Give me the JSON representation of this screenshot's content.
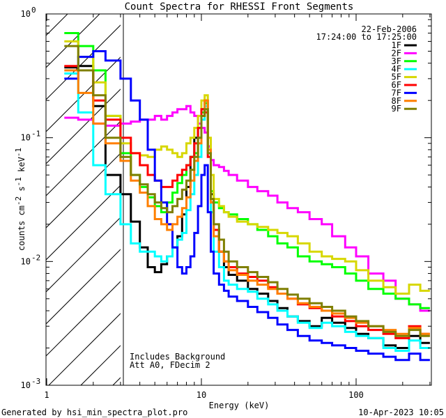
{
  "chart_data": {
    "type": "line",
    "title": "Count Spectra for RHESSI Front Segments",
    "xlabel": "Energy (keV)",
    "ylabel": "counts cm-2 s-1 keV-1",
    "ylabel_parts": [
      "counts cm",
      "-2",
      " s",
      "-1",
      " keV",
      "-1"
    ],
    "x_scale": "log",
    "y_scale": "log",
    "xlim": [
      1.2,
      310
    ],
    "ylim": [
      0.001,
      1.0
    ],
    "x_ticks": [
      {
        "value": 1,
        "label": "1"
      },
      {
        "value": 10,
        "label": "10"
      },
      {
        "value": 100,
        "label": "100"
      }
    ],
    "y_ticks": [
      {
        "value": 1,
        "base": "10",
        "exp": "0"
      },
      {
        "value": 0.1,
        "base": "10",
        "exp": "-1"
      },
      {
        "value": 0.01,
        "base": "10",
        "exp": "-2"
      },
      {
        "value": 0.001,
        "base": "10",
        "exp": "-3"
      }
    ],
    "hatch_region_max_keV": 3,
    "legend": {
      "placement": "top-right",
      "date": "22-Feb-2006",
      "time_range": "17:24:00 to 17:25:00"
    },
    "annotations": [
      "Includes Background",
      "Att A0, FDecim 2"
    ],
    "footer_left": "Generated by hsi_min_spectra_plot.pro",
    "footer_right": "10-Apr-2023 10:05",
    "energy_edges": [
      1.3,
      1.6,
      2.0,
      2.4,
      3.0,
      3.5,
      4.0,
      4.5,
      5.0,
      5.5,
      6.0,
      6.5,
      7.0,
      7.5,
      8.0,
      8.5,
      9.0,
      9.5,
      10.0,
      10.5,
      11.0,
      11.5,
      12.0,
      13.0,
      14.0,
      15.0,
      17.0,
      20.0,
      23.0,
      27.0,
      31.0,
      36.0,
      42.0,
      50.0,
      60.0,
      70.0,
      85.0,
      100.0,
      120.0,
      150.0,
      180.0,
      220.0,
      260.0,
      300.0
    ],
    "series": [
      {
        "name": "1F",
        "color": "#000000",
        "values": [
          0.37,
          0.38,
          0.18,
          0.05,
          0.035,
          0.021,
          0.013,
          0.009,
          0.0082,
          0.0095,
          0.011,
          0.013,
          0.016,
          0.024,
          0.04,
          0.07,
          0.1,
          0.12,
          0.17,
          0.2,
          0.085,
          0.035,
          0.018,
          0.012,
          0.009,
          0.0078,
          0.007,
          0.006,
          0.0055,
          0.0048,
          0.0042,
          0.0036,
          0.0033,
          0.003,
          0.0035,
          0.0032,
          0.0029,
          0.0026,
          0.0024,
          0.0021,
          0.002,
          0.0025,
          0.0022
        ]
      },
      {
        "name": "2F",
        "color": "#ff00ff",
        "values": [
          0.145,
          0.14,
          0.13,
          0.125,
          0.13,
          0.135,
          0.14,
          0.14,
          0.15,
          0.14,
          0.15,
          0.16,
          0.17,
          0.17,
          0.18,
          0.16,
          0.15,
          0.13,
          0.12,
          0.11,
          0.085,
          0.066,
          0.06,
          0.058,
          0.054,
          0.05,
          0.045,
          0.04,
          0.037,
          0.034,
          0.03,
          0.027,
          0.025,
          0.022,
          0.02,
          0.016,
          0.013,
          0.011,
          0.008,
          0.007,
          0.005,
          0.0045,
          0.004
        ]
      },
      {
        "name": "3F",
        "color": "#00ff00",
        "values": [
          0.7,
          0.55,
          0.35,
          0.15,
          0.075,
          0.05,
          0.04,
          0.033,
          0.028,
          0.025,
          0.03,
          0.036,
          0.043,
          0.05,
          0.06,
          0.07,
          0.075,
          0.1,
          0.16,
          0.19,
          0.08,
          0.037,
          0.03,
          0.027,
          0.025,
          0.024,
          0.022,
          0.02,
          0.018,
          0.016,
          0.014,
          0.013,
          0.011,
          0.01,
          0.0095,
          0.009,
          0.008,
          0.007,
          0.006,
          0.0055,
          0.005,
          0.0045,
          0.0042
        ]
      },
      {
        "name": "4F",
        "color": "#00ffff",
        "values": [
          0.33,
          0.16,
          0.06,
          0.035,
          0.02,
          0.014,
          0.012,
          0.012,
          0.011,
          0.01,
          0.011,
          0.013,
          0.015,
          0.017,
          0.026,
          0.035,
          0.05,
          0.07,
          0.14,
          0.18,
          0.08,
          0.025,
          0.012,
          0.009,
          0.007,
          0.0065,
          0.006,
          0.0057,
          0.005,
          0.0045,
          0.004,
          0.0036,
          0.0032,
          0.0029,
          0.0032,
          0.003,
          0.0027,
          0.0025,
          0.0024,
          0.002,
          0.0019,
          0.0023,
          0.002
        ]
      },
      {
        "name": "5F",
        "color": "#d7d700",
        "values": [
          0.6,
          0.45,
          0.28,
          0.15,
          0.09,
          0.075,
          0.072,
          0.07,
          0.08,
          0.085,
          0.08,
          0.075,
          0.07,
          0.075,
          0.09,
          0.1,
          0.12,
          0.15,
          0.2,
          0.22,
          0.1,
          0.05,
          0.032,
          0.028,
          0.025,
          0.023,
          0.021,
          0.02,
          0.019,
          0.018,
          0.017,
          0.016,
          0.014,
          0.012,
          0.011,
          0.0105,
          0.01,
          0.0085,
          0.007,
          0.0062,
          0.0055,
          0.0065,
          0.0058
        ]
      },
      {
        "name": "6F",
        "color": "#ff0000",
        "values": [
          0.38,
          0.35,
          0.2,
          0.14,
          0.1,
          0.075,
          0.06,
          0.05,
          0.045,
          0.04,
          0.04,
          0.045,
          0.05,
          0.055,
          0.06,
          0.07,
          0.09,
          0.12,
          0.17,
          0.16,
          0.07,
          0.03,
          0.018,
          0.012,
          0.01,
          0.009,
          0.008,
          0.0075,
          0.007,
          0.0062,
          0.0055,
          0.005,
          0.0045,
          0.0042,
          0.004,
          0.0036,
          0.0033,
          0.003,
          0.0028,
          0.0026,
          0.0024,
          0.003,
          0.0026
        ]
      },
      {
        "name": "7F",
        "color": "#0000ff",
        "values": [
          0.3,
          0.45,
          0.5,
          0.42,
          0.3,
          0.2,
          0.14,
          0.08,
          0.045,
          0.03,
          0.02,
          0.013,
          0.009,
          0.008,
          0.009,
          0.011,
          0.017,
          0.028,
          0.05,
          0.06,
          0.025,
          0.012,
          0.008,
          0.0065,
          0.0058,
          0.0052,
          0.0048,
          0.0043,
          0.0039,
          0.0035,
          0.0031,
          0.0028,
          0.0025,
          0.0023,
          0.0022,
          0.0021,
          0.002,
          0.0019,
          0.0018,
          0.0017,
          0.0016,
          0.0018,
          0.0016
        ]
      },
      {
        "name": "8F",
        "color": "#ff7f00",
        "values": [
          0.35,
          0.23,
          0.13,
          0.09,
          0.065,
          0.045,
          0.036,
          0.028,
          0.022,
          0.02,
          0.018,
          0.02,
          0.023,
          0.027,
          0.033,
          0.045,
          0.065,
          0.09,
          0.15,
          0.2,
          0.08,
          0.03,
          0.016,
          0.012,
          0.01,
          0.0085,
          0.0078,
          0.007,
          0.0065,
          0.006,
          0.0055,
          0.005,
          0.0046,
          0.0043,
          0.004,
          0.0038,
          0.0035,
          0.0032,
          0.003,
          0.0028,
          0.0026,
          0.0029,
          0.0026
        ]
      },
      {
        "name": "9F",
        "color": "#7f7f00",
        "values": [
          0.55,
          0.35,
          0.22,
          0.1,
          0.07,
          0.05,
          0.042,
          0.035,
          0.03,
          0.027,
          0.025,
          0.028,
          0.032,
          0.038,
          0.045,
          0.055,
          0.07,
          0.1,
          0.15,
          0.17,
          0.075,
          0.032,
          0.02,
          0.015,
          0.012,
          0.01,
          0.009,
          0.0082,
          0.0075,
          0.0068,
          0.006,
          0.0054,
          0.005,
          0.0046,
          0.0043,
          0.004,
          0.0036,
          0.0033,
          0.003,
          0.0027,
          0.0025,
          0.0028,
          0.0025
        ]
      }
    ]
  }
}
